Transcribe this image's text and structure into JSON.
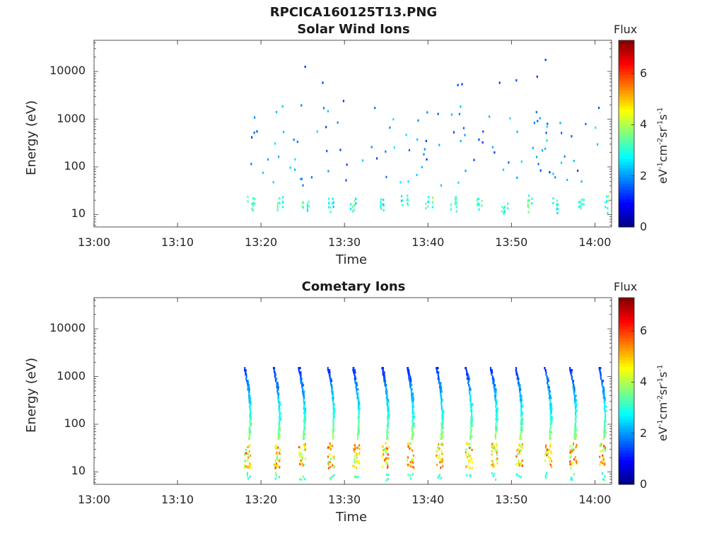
{
  "figure": {
    "supertitle": "RPCICA160125T13.PNG"
  },
  "colorbar": {
    "title": "Flux",
    "units_parts": [
      "eV",
      "-1",
      "cm",
      "-2",
      "sr",
      "-1",
      "s",
      "-1"
    ],
    "range": [
      0,
      7.3
    ],
    "ticks": [
      "0",
      "2",
      "4",
      "6"
    ],
    "colormap": "jet"
  },
  "chart_data": [
    {
      "type": "heatmap",
      "title": "Solar Wind Ions",
      "xlabel": "Time",
      "ylabel": "Energy (eV)",
      "yscale": "log",
      "xlim": [
        "13:00",
        "14:02"
      ],
      "ylim": [
        5.5,
        45000
      ],
      "xticks": [
        "13:00",
        "13:10",
        "13:20",
        "13:30",
        "13:40",
        "13:50",
        "14:00"
      ],
      "yticks": [
        "10",
        "100",
        "1000",
        "10000"
      ],
      "color_label": "Flux",
      "color_range": [
        0,
        7.3
      ],
      "data_start": "13:18",
      "data_end": "14:02",
      "pulse_times": [
        "13:18:30",
        "13:22",
        "13:25",
        "13:28",
        "13:31",
        "13:34",
        "13:37",
        "13:40",
        "13:43",
        "13:46",
        "13:49",
        "13:52",
        "13:55",
        "13:58",
        "14:01:30"
      ],
      "band_low_energy": [
        13,
        25
      ],
      "band_low_flux": [
        2.5,
        3.8
      ],
      "sparse_energy": [
        40,
        2000
      ],
      "sparse_flux": [
        1.3,
        2.6
      ],
      "isolated_points": [
        {
          "time": "13:25:12",
          "energy": 12500,
          "flux": 1.3
        },
        {
          "time": "13:27:18",
          "energy": 5800,
          "flux": 1.4
        },
        {
          "time": "13:29:48",
          "energy": 2400,
          "flux": 1.3
        },
        {
          "time": "13:43:30",
          "energy": 5200,
          "flux": 1.4
        },
        {
          "time": "13:44:00",
          "energy": 5400,
          "flux": 1.3
        },
        {
          "time": "13:48:30",
          "energy": 5800,
          "flux": 1.3
        },
        {
          "time": "13:50:30",
          "energy": 6500,
          "flux": 1.4
        },
        {
          "time": "13:53:00",
          "energy": 7800,
          "flux": 1.3
        },
        {
          "time": "13:54:00",
          "energy": 17500,
          "flux": 1.3
        }
      ]
    },
    {
      "type": "heatmap",
      "title": "Cometary Ions",
      "xlabel": "Time",
      "ylabel": "Energy (eV)",
      "yscale": "log",
      "xlim": [
        "13:00",
        "14:02"
      ],
      "ylim": [
        5.5,
        45000
      ],
      "xticks": [
        "13:00",
        "13:10",
        "13:20",
        "13:30",
        "13:40",
        "13:50",
        "14:00"
      ],
      "yticks": [
        "10",
        "100",
        "1000",
        "10000"
      ],
      "color_label": "Flux",
      "color_range": [
        0,
        7.3
      ],
      "data_start": "13:17:30",
      "data_end": "14:02",
      "pulse_times": [
        "13:18",
        "13:21:30",
        "13:24:30",
        "13:28",
        "13:31",
        "13:34:30",
        "13:37:30",
        "13:41",
        "13:44:30",
        "13:47:30",
        "13:50:30",
        "13:54",
        "13:57",
        "14:00:30"
      ],
      "sweep_start_energy": 1500,
      "sweep_end_energy": 50,
      "sweep_flux": [
        1.2,
        3.8
      ],
      "band_low_energy": [
        12,
        40
      ],
      "band_low_flux": [
        3.5,
        6.0
      ]
    }
  ]
}
